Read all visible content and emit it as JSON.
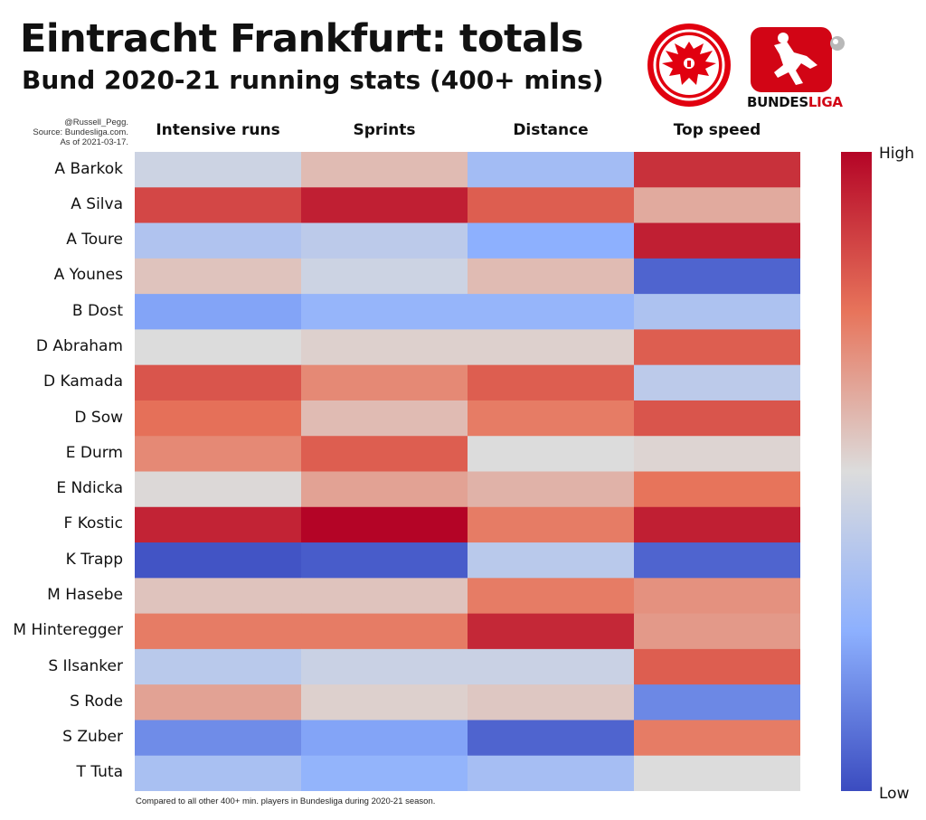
{
  "header": {
    "title": "Eintracht Frankfurt: totals",
    "subtitle": "Bund 2020-21 running stats (400+ mins)",
    "credit": [
      "@Russell_Pegg.",
      "Source: Bundesliga.com.",
      "As of 2021-03-17."
    ],
    "footnote": "Compared to all other 400+ min. players in Bundesliga during 2020-21 season."
  },
  "logos": {
    "club": "eintracht-eagle-icon",
    "league": "bundesliga-player-icon",
    "league_text_a": "BUNDES",
    "league_text_b": "LIGA"
  },
  "colorbar": {
    "high_label": "High",
    "low_label": "Low",
    "colors": [
      "#b40426",
      "#e7745b",
      "#dcdcdc",
      "#8db0fe",
      "#3b4cc0"
    ]
  },
  "chart_data": {
    "type": "heatmap",
    "categories": [
      "Intensive runs",
      "Sprints",
      "Distance",
      "Top speed"
    ],
    "rows": [
      "A Barkok",
      "A Silva",
      "A Toure",
      "A Younes",
      "B Dost",
      "D Abraham",
      "D Kamada",
      "D Sow",
      "E Durm",
      "E Ndicka",
      "F Kostic",
      "K Trapp",
      "M Hasebe",
      "M Hinteregger",
      "S Ilsanker",
      "S Rode",
      "S Zuber",
      "T Tuta"
    ],
    "values": [
      [
        0.45,
        0.58,
        0.32,
        0.9
      ],
      [
        0.85,
        0.94,
        0.8,
        0.62
      ],
      [
        0.36,
        0.4,
        0.25,
        0.94
      ],
      [
        0.56,
        0.45,
        0.58,
        0.06
      ],
      [
        0.22,
        0.28,
        0.28,
        0.35
      ],
      [
        0.5,
        0.53,
        0.53,
        0.8
      ],
      [
        0.82,
        0.7,
        0.8,
        0.4
      ],
      [
        0.76,
        0.58,
        0.73,
        0.82
      ],
      [
        0.7,
        0.8,
        0.5,
        0.52
      ],
      [
        0.51,
        0.64,
        0.6,
        0.75
      ],
      [
        0.93,
        1.0,
        0.73,
        0.94
      ],
      [
        0.02,
        0.04,
        0.39,
        0.06
      ],
      [
        0.56,
        0.56,
        0.73,
        0.68
      ],
      [
        0.73,
        0.73,
        0.92,
        0.66
      ],
      [
        0.39,
        0.44,
        0.44,
        0.8
      ],
      [
        0.64,
        0.53,
        0.55,
        0.15
      ],
      [
        0.16,
        0.22,
        0.06,
        0.73
      ],
      [
        0.34,
        0.27,
        0.33,
        0.5
      ]
    ],
    "color_scale": "coolwarm",
    "vmin": 0,
    "vmax": 1
  }
}
